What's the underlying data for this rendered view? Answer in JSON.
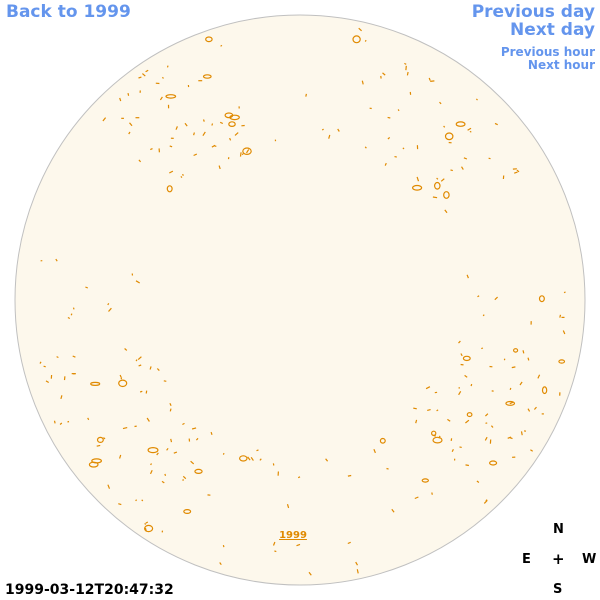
{
  "nav": {
    "back": "Back to 1999",
    "previous_day": "Previous day",
    "next_day": "Next day",
    "previous_hour": "Previous hour",
    "next_hour": "Next hour"
  },
  "disk": {
    "year_label": "1999",
    "fill_color": "#fdf8ec",
    "border_color": "#c0c0c0",
    "contour_color": "#e08a00"
  },
  "compass": {
    "n": "N",
    "e": "E",
    "center": "+",
    "w": "W",
    "s": "S"
  },
  "timestamp": "1999-03-12T20:47:32"
}
